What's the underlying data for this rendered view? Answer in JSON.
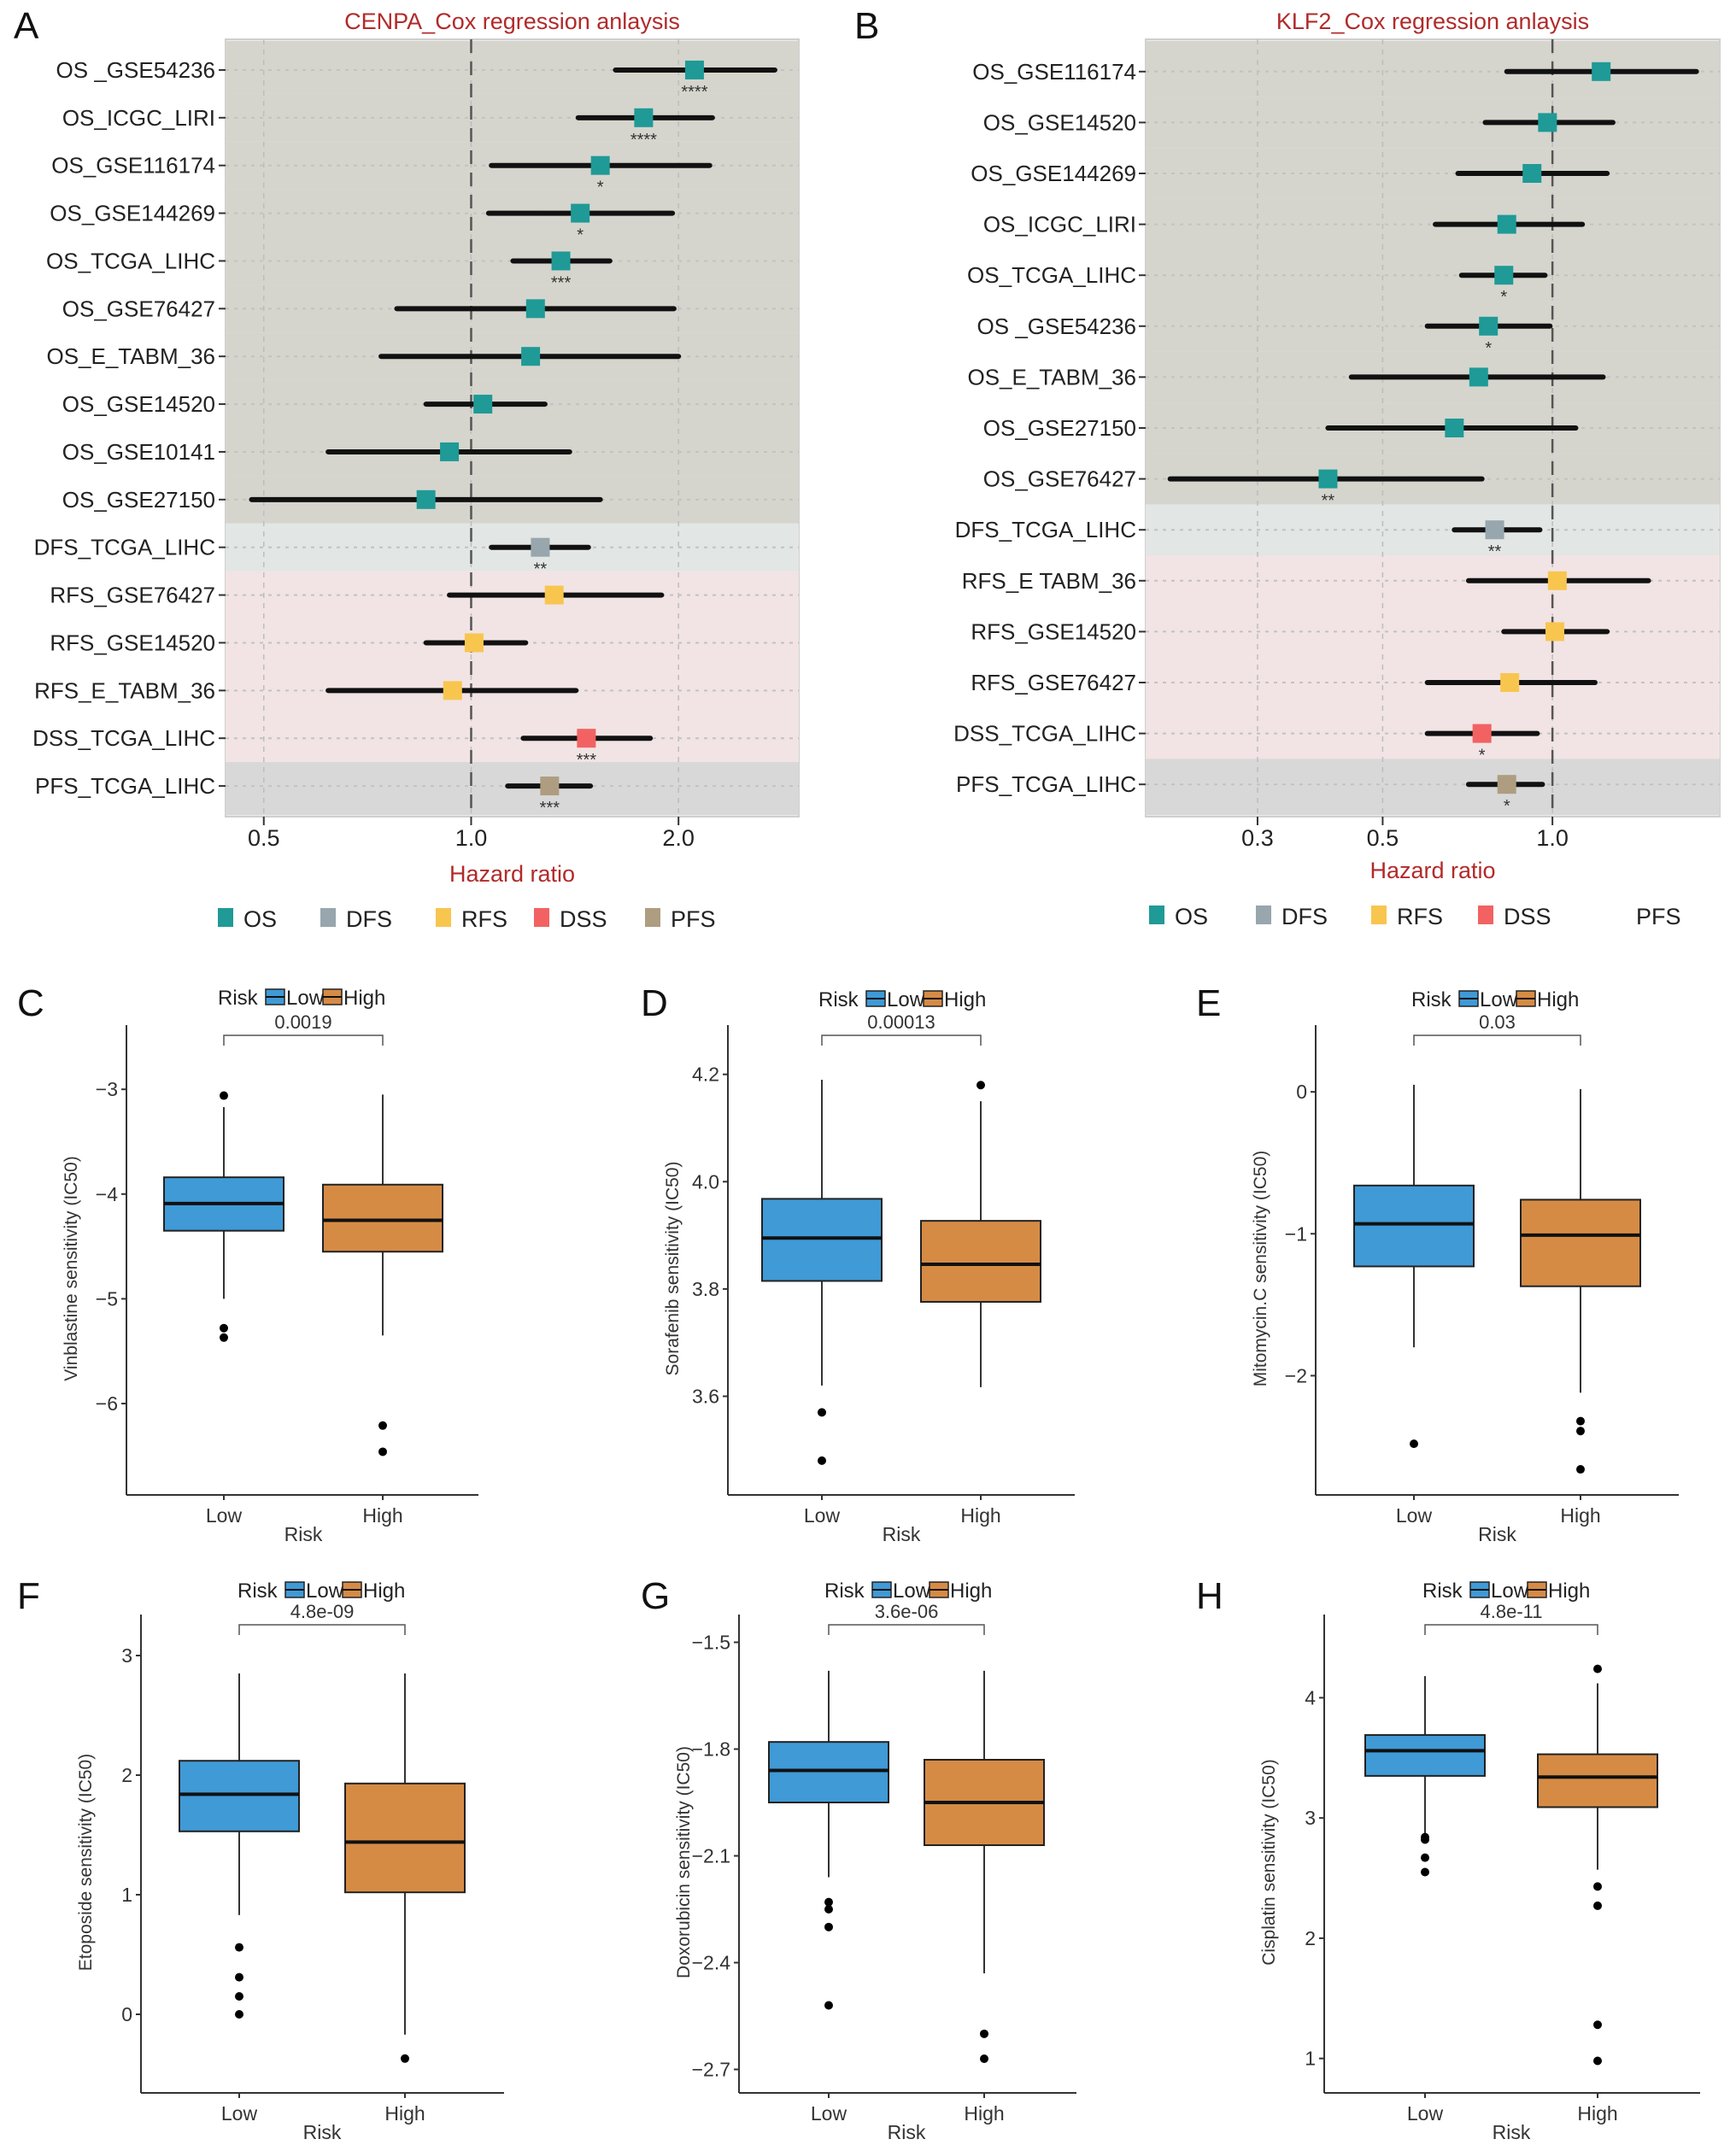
{
  "figure": {
    "panels": [
      "A",
      "B",
      "C",
      "D",
      "E",
      "F",
      "G",
      "H"
    ]
  },
  "chart_data": [
    {
      "panel": "A",
      "type": "forest",
      "title": "CENPA_Cox regression anlaysis",
      "xlabel": "Hazard ratio",
      "ylabel": "",
      "xscale": "log",
      "xlim": [
        0.44,
        2.99
      ],
      "xticks": [
        0.5,
        1.0,
        2.0
      ],
      "xtick_labels": [
        "0.5",
        "1.0",
        "2.0"
      ],
      "reference_line": 1.0,
      "grid": true,
      "legend": {
        "position": "bottom",
        "entries": [
          {
            "label": "OS",
            "color": "#1f9a96",
            "show_key": true
          },
          {
            "label": "DFS",
            "color": "#98a6ad",
            "show_key": true
          },
          {
            "label": "RFS",
            "color": "#f8c64f",
            "show_key": true
          },
          {
            "label": "DSS",
            "color": "#f26262",
            "show_key": true
          },
          {
            "label": "PFS",
            "color": "#ae9d80",
            "show_key": true
          }
        ]
      },
      "groups": [
        {
          "type": "OS",
          "band_color": "#d5d5ce"
        },
        {
          "type": "DFS",
          "band_color": "#e2e6e4"
        },
        {
          "type": "RFS",
          "band_color": "#f2e4e4"
        },
        {
          "type": "DSS",
          "band_color": "#f2e4e4"
        },
        {
          "type": "PFS",
          "band_color": "#d8d8d8"
        }
      ],
      "rows": [
        {
          "label": "OS _GSE54236",
          "type": "OS",
          "hr": 2.11,
          "lower": 1.62,
          "upper": 2.76,
          "sig": "****"
        },
        {
          "label": "OS_ICGC_LIRI",
          "type": "OS",
          "hr": 1.78,
          "lower": 1.43,
          "upper": 2.24,
          "sig": "****"
        },
        {
          "label": "OS_GSE116174",
          "type": "OS",
          "hr": 1.54,
          "lower": 1.07,
          "upper": 2.22,
          "sig": "*"
        },
        {
          "label": "OS_GSE144269",
          "type": "OS",
          "hr": 1.44,
          "lower": 1.06,
          "upper": 1.96,
          "sig": "*"
        },
        {
          "label": "OS_TCGA_LIHC",
          "type": "OS",
          "hr": 1.35,
          "lower": 1.15,
          "upper": 1.59,
          "sig": "***"
        },
        {
          "label": "OS_GSE76427",
          "type": "OS",
          "hr": 1.24,
          "lower": 0.78,
          "upper": 1.97,
          "sig": ""
        },
        {
          "label": "OS_E_TABM_36",
          "type": "OS",
          "hr": 1.22,
          "lower": 0.74,
          "upper": 2.0,
          "sig": ""
        },
        {
          "label": "OS_GSE14520",
          "type": "OS",
          "hr": 1.04,
          "lower": 0.86,
          "upper": 1.28,
          "sig": ""
        },
        {
          "label": "OS_GSE10141",
          "type": "OS",
          "hr": 0.93,
          "lower": 0.62,
          "upper": 1.39,
          "sig": ""
        },
        {
          "label": "OS_GSE27150",
          "type": "OS",
          "hr": 0.86,
          "lower": 0.48,
          "upper": 1.54,
          "sig": ""
        },
        {
          "label": "DFS_TCGA_LIHC",
          "type": "DFS",
          "hr": 1.26,
          "lower": 1.07,
          "upper": 1.48,
          "sig": "**"
        },
        {
          "label": "RFS_GSE76427",
          "type": "RFS",
          "hr": 1.32,
          "lower": 0.93,
          "upper": 1.89,
          "sig": ""
        },
        {
          "label": "RFS_GSE14520",
          "type": "RFS",
          "hr": 1.01,
          "lower": 0.86,
          "upper": 1.2,
          "sig": ""
        },
        {
          "label": "RFS_E_TABM_36",
          "type": "RFS",
          "hr": 0.94,
          "lower": 0.62,
          "upper": 1.42,
          "sig": ""
        },
        {
          "label": "DSS_TCGA_LIHC",
          "type": "DSS",
          "hr": 1.47,
          "lower": 1.19,
          "upper": 1.82,
          "sig": "***"
        },
        {
          "label": "PFS_TCGA_LIHC",
          "type": "PFS",
          "hr": 1.3,
          "lower": 1.13,
          "upper": 1.49,
          "sig": "***"
        }
      ]
    },
    {
      "panel": "B",
      "type": "forest",
      "title": "KLF2_Cox regression anlaysis",
      "xlabel": "Hazard ratio",
      "ylabel": "",
      "xscale": "log",
      "xlim": [
        0.19,
        1.98
      ],
      "xticks": [
        0.3,
        0.5,
        1.0
      ],
      "xtick_labels": [
        "0.3",
        "0.5",
        "1.0"
      ],
      "reference_line": 1.0,
      "grid": true,
      "legend": {
        "position": "bottom",
        "entries": [
          {
            "label": "OS",
            "color": "#1f9a96",
            "show_key": true
          },
          {
            "label": "DFS",
            "color": "#98a6ad",
            "show_key": true
          },
          {
            "label": "RFS",
            "color": "#f8c64f",
            "show_key": true
          },
          {
            "label": "DSS",
            "color": "#f26262",
            "show_key": true
          },
          {
            "label": "PFS",
            "color": "#ae9d80",
            "show_key": false
          }
        ]
      },
      "groups": [
        {
          "type": "OS",
          "band_color": "#d5d5ce"
        },
        {
          "type": "DFS",
          "band_color": "#e2e6e4"
        },
        {
          "type": "RFS",
          "band_color": "#f2e4e4"
        },
        {
          "type": "DSS",
          "band_color": "#f2e4e4"
        },
        {
          "type": "PFS",
          "band_color": "#d8d8d8"
        }
      ],
      "rows": [
        {
          "label": "OS_GSE116174",
          "type": "OS",
          "hr": 1.22,
          "lower": 0.83,
          "upper": 1.8,
          "sig": ""
        },
        {
          "label": "OS_GSE14520",
          "type": "OS",
          "hr": 0.98,
          "lower": 0.76,
          "upper": 1.28,
          "sig": ""
        },
        {
          "label": "OS_GSE144269",
          "type": "OS",
          "hr": 0.92,
          "lower": 0.68,
          "upper": 1.25,
          "sig": ""
        },
        {
          "label": "OS_ICGC_LIRI",
          "type": "OS",
          "hr": 0.83,
          "lower": 0.62,
          "upper": 1.13,
          "sig": ""
        },
        {
          "label": "OS_TCGA_LIHC",
          "type": "OS",
          "hr": 0.82,
          "lower": 0.69,
          "upper": 0.97,
          "sig": "*"
        },
        {
          "label": "OS _GSE54236",
          "type": "OS",
          "hr": 0.77,
          "lower": 0.6,
          "upper": 0.99,
          "sig": "*"
        },
        {
          "label": "OS_E_TABM_36",
          "type": "OS",
          "hr": 0.74,
          "lower": 0.44,
          "upper": 1.23,
          "sig": ""
        },
        {
          "label": "OS_GSE27150",
          "type": "OS",
          "hr": 0.67,
          "lower": 0.4,
          "upper": 1.1,
          "sig": ""
        },
        {
          "label": "OS_GSE76427",
          "type": "OS",
          "hr": 0.4,
          "lower": 0.21,
          "upper": 0.75,
          "sig": "**"
        },
        {
          "label": "DFS_TCGA_LIHC",
          "type": "DFS",
          "hr": 0.79,
          "lower": 0.67,
          "upper": 0.95,
          "sig": "**"
        },
        {
          "label": "RFS_E TABM_36",
          "type": "RFS",
          "hr": 1.02,
          "lower": 0.71,
          "upper": 1.48,
          "sig": ""
        },
        {
          "label": "RFS_GSE14520",
          "type": "RFS",
          "hr": 1.01,
          "lower": 0.82,
          "upper": 1.25,
          "sig": ""
        },
        {
          "label": "RFS_GSE76427",
          "type": "RFS",
          "hr": 0.84,
          "lower": 0.6,
          "upper": 1.19,
          "sig": ""
        },
        {
          "label": "DSS_TCGA_LIHC",
          "type": "DSS",
          "hr": 0.75,
          "lower": 0.6,
          "upper": 0.94,
          "sig": "*"
        },
        {
          "label": "PFS_TCGA_LIHC",
          "type": "PFS",
          "hr": 0.83,
          "lower": 0.71,
          "upper": 0.96,
          "sig": "*"
        }
      ]
    },
    {
      "panel": "C",
      "type": "boxplot",
      "title": "",
      "legend": {
        "title": "Risk",
        "position": "top",
        "entries": [
          {
            "label": "Low",
            "color": "#3f9ad6"
          },
          {
            "label": "High",
            "color": "#d68b45"
          }
        ]
      },
      "xlabel": "Risk",
      "ylabel": "Vinblastine sensitivity (IC50)",
      "categories": [
        "Low",
        "High"
      ],
      "ylim": [
        -6.75,
        -2.55
      ],
      "yticks": [
        -3,
        -4,
        -5,
        -6
      ],
      "ytick_labels": [
        "−3",
        "−4",
        "−5",
        "−6"
      ],
      "p_value": "0.0019",
      "boxes": [
        {
          "group": "Low",
          "whisker_low": -5.0,
          "q1": -4.35,
          "median": -4.09,
          "q3": -3.84,
          "whisker_high": -3.17,
          "outliers": [
            -3.06,
            -5.28,
            -5.37
          ]
        },
        {
          "group": "High",
          "whisker_low": -5.35,
          "q1": -4.55,
          "median": -4.25,
          "q3": -3.91,
          "whisker_high": -3.05,
          "outliers": [
            -6.21,
            -6.46
          ]
        }
      ]
    },
    {
      "panel": "D",
      "type": "boxplot",
      "title": "",
      "legend": {
        "title": "Risk",
        "position": "top",
        "entries": [
          {
            "label": "Low",
            "color": "#3f9ad6"
          },
          {
            "label": "High",
            "color": "#d68b45"
          }
        ]
      },
      "xlabel": "Risk",
      "ylabel": "Sorafenib sensitivity (IC50)",
      "categories": [
        "Low",
        "High"
      ],
      "ylim": [
        3.44,
        4.26
      ],
      "yticks": [
        4.2,
        4.0,
        3.8,
        3.6
      ],
      "ytick_labels": [
        "4.2",
        "4.0",
        "3.8",
        "3.6"
      ],
      "p_value": "0.00013",
      "boxes": [
        {
          "group": "Low",
          "whisker_low": 3.62,
          "q1": 3.815,
          "median": 3.895,
          "q3": 3.968,
          "whisker_high": 4.19,
          "outliers": [
            3.57,
            3.48
          ]
        },
        {
          "group": "High",
          "whisker_low": 3.617,
          "q1": 3.776,
          "median": 3.846,
          "q3": 3.927,
          "whisker_high": 4.15,
          "outliers": [
            4.18
          ]
        }
      ]
    },
    {
      "panel": "E",
      "type": "boxplot",
      "title": "",
      "legend": {
        "title": "Risk",
        "position": "top",
        "entries": [
          {
            "label": "Low",
            "color": "#3f9ad6"
          },
          {
            "label": "High",
            "color": "#d68b45"
          }
        ]
      },
      "xlabel": "Risk",
      "ylabel": "Mitomycin.C sensitivity (IC50)",
      "categories": [
        "Low",
        "High"
      ],
      "ylim": [
        -2.75,
        0.35
      ],
      "yticks": [
        0,
        -1,
        -2
      ],
      "ytick_labels": [
        "0",
        "−1",
        "−2"
      ],
      "p_value": "0.03",
      "boxes": [
        {
          "group": "Low",
          "whisker_low": -1.8,
          "q1": -1.23,
          "median": -0.93,
          "q3": -0.66,
          "whisker_high": 0.05,
          "outliers": [
            -2.48
          ]
        },
        {
          "group": "High",
          "whisker_low": -2.12,
          "q1": -1.37,
          "median": -1.01,
          "q3": -0.76,
          "whisker_high": 0.02,
          "outliers": [
            -2.32,
            -2.39,
            -2.66
          ]
        }
      ]
    },
    {
      "panel": "F",
      "type": "boxplot",
      "title": "",
      "legend": {
        "title": "Risk",
        "position": "top",
        "entries": [
          {
            "label": "Low",
            "color": "#3f9ad6"
          },
          {
            "label": "High",
            "color": "#d68b45"
          }
        ]
      },
      "xlabel": "Risk",
      "ylabel": "Etoposide sensitivity (IC50)",
      "categories": [
        "Low",
        "High"
      ],
      "ylim": [
        -0.55,
        3.2
      ],
      "yticks": [
        3,
        2,
        1,
        0
      ],
      "ytick_labels": [
        "3",
        "2",
        "1",
        "0"
      ],
      "p_value": "4.8e-09",
      "boxes": [
        {
          "group": "Low",
          "whisker_low": 0.83,
          "q1": 1.53,
          "median": 1.84,
          "q3": 2.12,
          "whisker_high": 2.85,
          "outliers": [
            0.56,
            0.31,
            0.15,
            0.0
          ]
        },
        {
          "group": "High",
          "whisker_low": -0.17,
          "q1": 1.02,
          "median": 1.44,
          "q3": 1.93,
          "whisker_high": 2.85,
          "outliers": [
            -0.37
          ]
        }
      ]
    },
    {
      "panel": "G",
      "type": "boxplot",
      "title": "",
      "legend": {
        "title": "Risk",
        "position": "top",
        "entries": [
          {
            "label": "Low",
            "color": "#3f9ad6"
          },
          {
            "label": "High",
            "color": "#d68b45"
          }
        ]
      },
      "xlabel": "Risk",
      "ylabel": "Doxorubicin sensitivity (IC50)",
      "categories": [
        "Low",
        "High"
      ],
      "ylim": [
        -2.73,
        -1.47
      ],
      "yticks": [
        -1.5,
        -1.8,
        -2.1,
        -2.4,
        -2.7
      ],
      "ytick_labels": [
        "−1.5",
        "−1.8",
        "−2.1",
        "−2.4",
        "−2.7"
      ],
      "p_value": "3.6e-06",
      "boxes": [
        {
          "group": "Low",
          "whisker_low": -2.16,
          "q1": -1.95,
          "median": -1.86,
          "q3": -1.78,
          "whisker_high": -1.58,
          "outliers": [
            -2.23,
            -2.25,
            -2.3,
            -2.52
          ]
        },
        {
          "group": "High",
          "whisker_low": -2.43,
          "q1": -2.07,
          "median": -1.95,
          "q3": -1.83,
          "whisker_high": -1.58,
          "outliers": [
            -2.6,
            -2.67
          ]
        }
      ]
    },
    {
      "panel": "H",
      "type": "boxplot",
      "title": "",
      "legend": {
        "title": "Risk",
        "position": "top",
        "entries": [
          {
            "label": "Low",
            "color": "#3f9ad6"
          },
          {
            "label": "High",
            "color": "#d68b45"
          }
        ]
      },
      "xlabel": "Risk",
      "ylabel": "Cisplatin sensitivity (IC50)",
      "categories": [
        "Low",
        "High"
      ],
      "ylim": [
        0.82,
        4.55
      ],
      "yticks": [
        4,
        3,
        2,
        1
      ],
      "ytick_labels": [
        "4",
        "3",
        "2",
        "1"
      ],
      "p_value": "4.8e-11",
      "boxes": [
        {
          "group": "Low",
          "whisker_low": 2.87,
          "q1": 3.35,
          "median": 3.56,
          "q3": 3.69,
          "whisker_high": 4.18,
          "outliers": [
            2.84,
            2.82,
            2.67,
            2.55
          ]
        },
        {
          "group": "High",
          "whisker_low": 2.57,
          "q1": 3.09,
          "median": 3.34,
          "q3": 3.53,
          "whisker_high": 4.12,
          "outliers": [
            4.24,
            2.43,
            2.27,
            1.28,
            0.98
          ]
        }
      ]
    }
  ]
}
